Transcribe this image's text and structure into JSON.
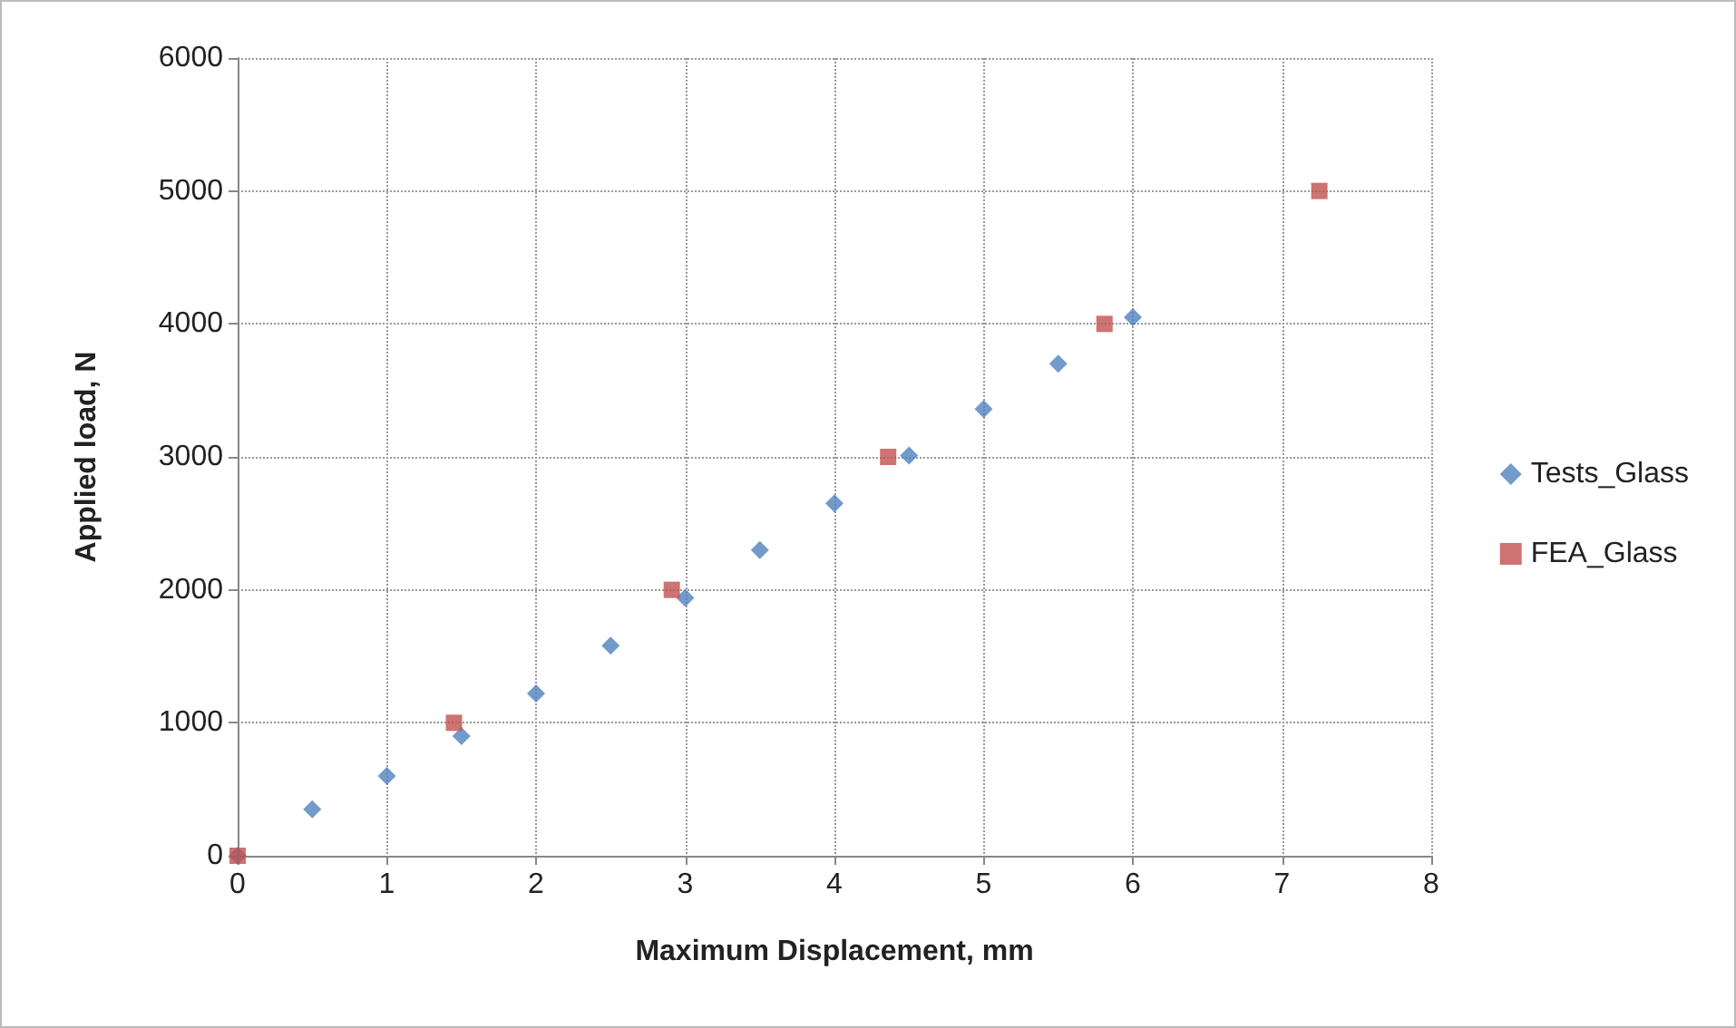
{
  "chart_data": {
    "type": "scatter",
    "xlabel": "Maximum Displacement, mm",
    "ylabel": "Applied load, N",
    "xlim": [
      0,
      8
    ],
    "xticks": [
      0,
      1,
      2,
      3,
      4,
      5,
      6,
      7,
      8
    ],
    "ylim": [
      0,
      6000
    ],
    "yticks": [
      0,
      1000,
      2000,
      3000,
      4000,
      5000,
      6000
    ],
    "grid": true,
    "legend": "right",
    "line_style": "dotted",
    "series": [
      {
        "name": "Tests_Glass",
        "color": "#4f81bd",
        "marker": "diamond",
        "x": [
          0,
          0.5,
          1,
          1.5,
          2,
          2.5,
          3,
          3.5,
          4,
          4.5,
          5,
          5.5,
          6
        ],
        "values": [
          0,
          350,
          600,
          900,
          1220,
          1580,
          1940,
          2300,
          2650,
          3010,
          3360,
          3700,
          4050
        ]
      },
      {
        "name": "FEA_Glass",
        "color": "#c0504d",
        "marker": "square",
        "x": [
          0,
          1.45,
          2.91,
          4.36,
          5.81,
          7.25
        ],
        "values": [
          0,
          1000,
          2000,
          3000,
          4000,
          5000
        ]
      }
    ]
  }
}
